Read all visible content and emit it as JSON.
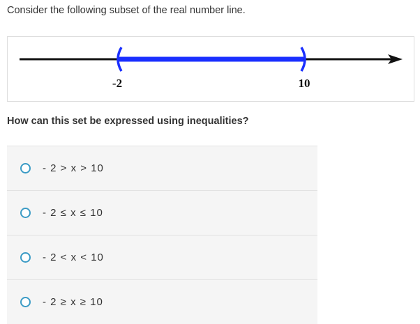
{
  "prompt": "Consider the following subset of the real number line.",
  "figure": {
    "left_value": "-2",
    "right_value": "10",
    "left_endpoint": "open",
    "right_endpoint": "open",
    "interval_color": "#1a2fff"
  },
  "question": "How can this set be expressed using inequalities?",
  "options": [
    {
      "label": "- 2 > x > 10"
    },
    {
      "label": "- 2 ≤ x ≤ 10"
    },
    {
      "label": "- 2 < x < 10"
    },
    {
      "label": "- 2 ≥ x ≥ 10"
    }
  ]
}
